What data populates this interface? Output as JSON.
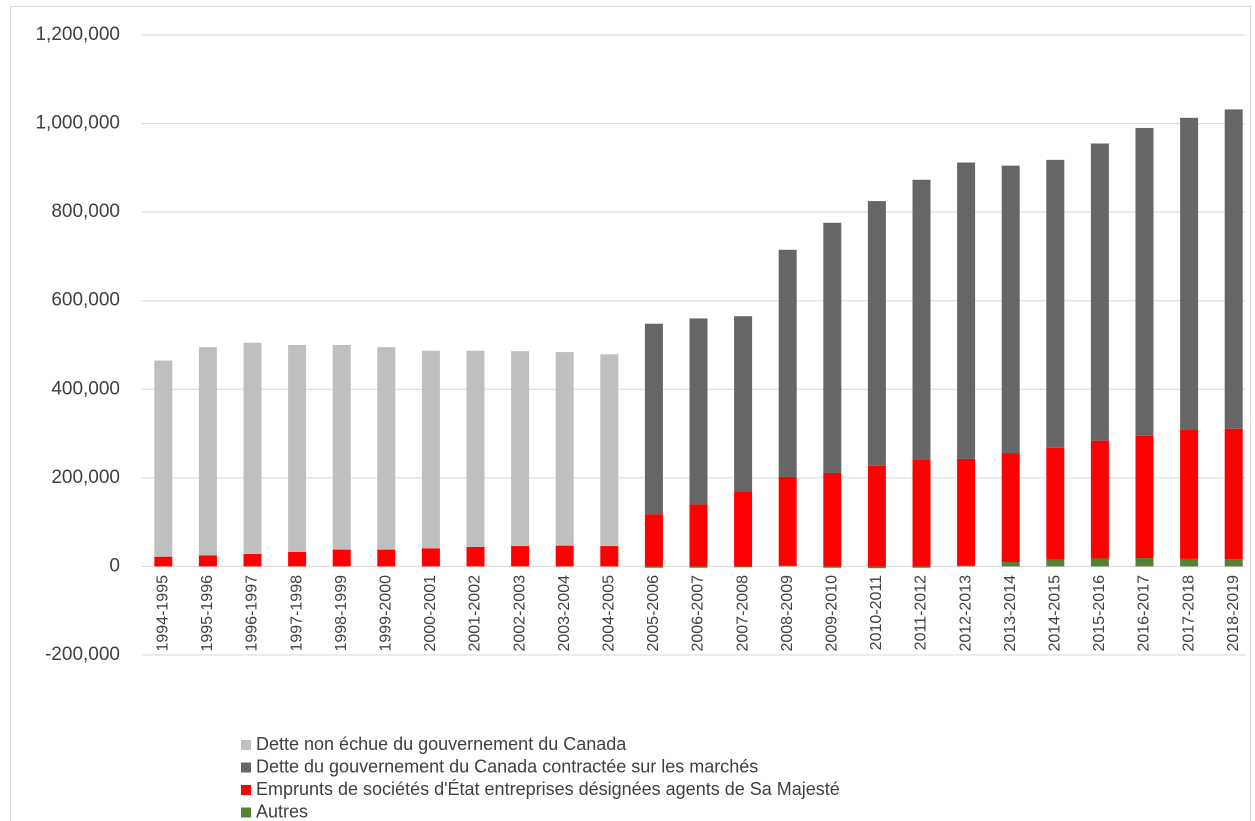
{
  "chart_data": {
    "type": "bar",
    "stacked": true,
    "categories": [
      "1994-1995",
      "1995-1996",
      "1996-1997",
      "1997-1998",
      "1998-1999",
      "1999-2000",
      "2000-2001",
      "2001-2002",
      "2002-2003",
      "2003-2004",
      "2004-2005",
      "2005-2006",
      "2006-2007",
      "2007-2008",
      "2008-2009",
      "2009-2010",
      "2010-2011",
      "2011-2012",
      "2012-2013",
      "2013-2014",
      "2014-2015",
      "2015-2016",
      "2016-2017",
      "2017-2018",
      "2018-2019"
    ],
    "series": [
      {
        "name": "Autres",
        "color": "#548235",
        "values": [
          0,
          0,
          0,
          0,
          0,
          0,
          0,
          0,
          0,
          0,
          0,
          -3000,
          -3000,
          -2000,
          2000,
          -3000,
          -4000,
          -3000,
          2000,
          10000,
          15000,
          18000,
          19000,
          17000,
          16000
        ]
      },
      {
        "name": "Emprunts de sociétés d'État entreprises désignées agents de Sa Majesté",
        "color": "#ff0000",
        "values": [
          22000,
          25000,
          28000,
          33000,
          38000,
          38000,
          41000,
          44000,
          46000,
          47000,
          46000,
          118000,
          140000,
          170000,
          200000,
          211000,
          227000,
          242000,
          241000,
          246000,
          253000,
          266000,
          276000,
          291000,
          295000
        ]
      },
      {
        "name": "Dette du gouvernement du Canada contractée sur les marchés",
        "color": "#666666",
        "values": [
          0,
          0,
          0,
          0,
          0,
          0,
          0,
          0,
          0,
          0,
          0,
          430000,
          420000,
          395000,
          513000,
          565000,
          598000,
          631000,
          669000,
          649000,
          650000,
          671000,
          695000,
          705000,
          721000
        ]
      },
      {
        "name": "Dette non échue du gouvernement du Canada",
        "color": "#bfbfbf",
        "values": [
          443000,
          470000,
          477000,
          467000,
          462000,
          457000,
          446000,
          443000,
          440000,
          437000,
          433000,
          0,
          0,
          0,
          0,
          0,
          0,
          0,
          0,
          0,
          0,
          0,
          0,
          0,
          0
        ]
      }
    ],
    "ylim": [
      -200000,
      1200000
    ],
    "yticks": [
      {
        "value": -200000,
        "label": "-200,000"
      },
      0,
      {
        "value": 200000,
        "label": "200,000"
      },
      {
        "value": 400000,
        "label": "400,000"
      },
      {
        "value": 600000,
        "label": "600,000"
      },
      {
        "value": 800000,
        "label": "800,000"
      },
      {
        "value": 1000000,
        "label": "1,000,000"
      },
      {
        "value": 1200000,
        "label": "1,200,000"
      }
    ],
    "grid": true,
    "legend": "bottom"
  }
}
